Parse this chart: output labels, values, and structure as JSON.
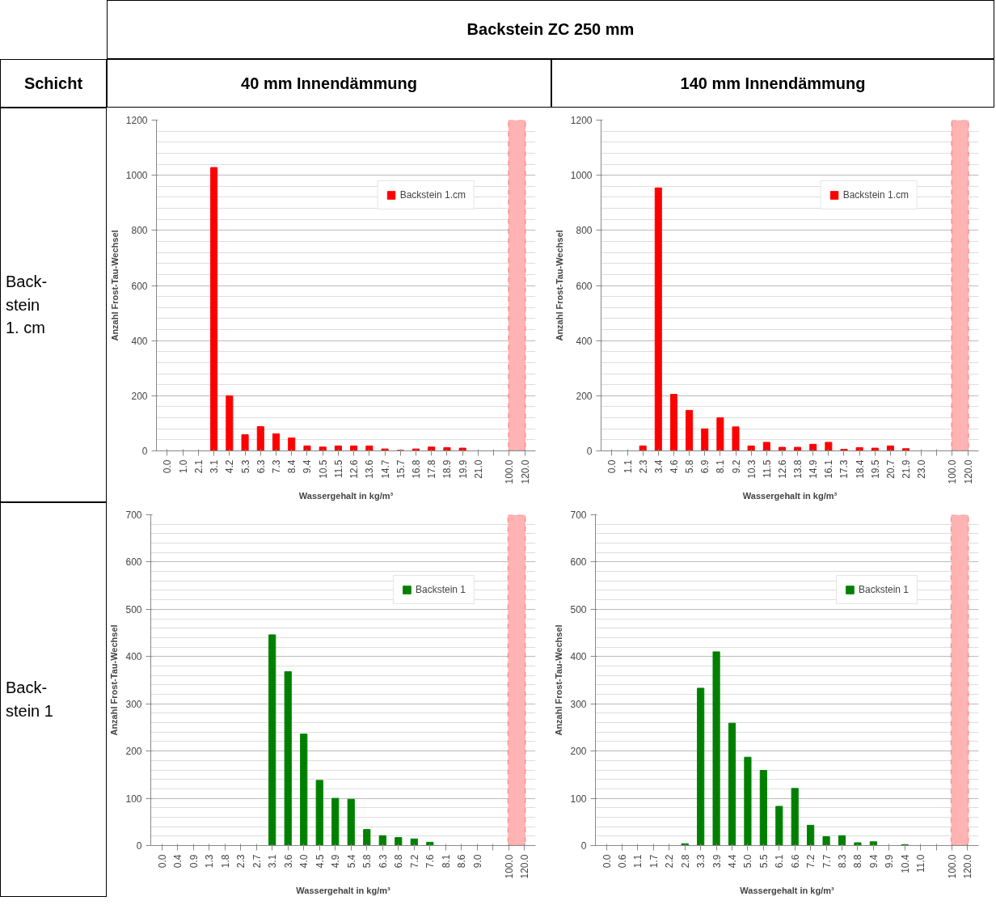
{
  "chart_data": [
    {
      "type": "bar",
      "title": "40 mm Innendämmung",
      "annotations": [
        "Backstein ZC 250 mm",
        "Schicht",
        "Back-\nstein\n1. cm"
      ],
      "xlabel": "Wassergehalt in kg/m³",
      "ylabel": "Anzahl Frost-Tau-Wechsel",
      "categories": [
        "0.0",
        "1.0",
        "2.1",
        "3.1",
        "4.2",
        "5.3",
        "6.3",
        "7.3",
        "8.4",
        "9.4",
        "10.5",
        "11.5",
        "12.6",
        "13.6",
        "14.7",
        "15.7",
        "16.8",
        "17.8",
        "18.9",
        "19.9",
        "21.0",
        null,
        "100.0",
        "120.0"
      ],
      "series": [
        {
          "name": "Backstein 1.cm",
          "color": "#ff0000",
          "values": [
            0,
            0,
            0,
            1028,
            200,
            59,
            88,
            62,
            47,
            18,
            14,
            18,
            18,
            18,
            7,
            2,
            7,
            14,
            12,
            10,
            0,
            null,
            0,
            0
          ]
        }
      ],
      "ylim": [
        0,
        1200
      ],
      "yticks": [
        0,
        200,
        400,
        600,
        800,
        1000,
        1200
      ],
      "grid": "y",
      "legend": "top right",
      "bands": [
        {
          "axis": "x",
          "from": "100.0",
          "to": "120.0",
          "color": "#ffb3b3"
        }
      ]
    },
    {
      "type": "bar",
      "title": "140 mm Innendämmung",
      "xlabel": "Wassergehalt in kg/m³",
      "ylabel": "Anzahl Frost-Tau-Wechsel",
      "categories": [
        "0.0",
        "1.1",
        "2.3",
        "3.4",
        "4.6",
        "5.8",
        "6.9",
        "8.1",
        "9.2",
        "10.3",
        "11.5",
        "12.6",
        "13.8",
        "14.9",
        "16.1",
        "17.3",
        "18.4",
        "19.5",
        "20.7",
        "21.9",
        "23.0",
        null,
        "100.0",
        "120.0"
      ],
      "series": [
        {
          "name": "Backstein 1.cm",
          "color": "#ff0000",
          "values": [
            0,
            0,
            18,
            954,
            205,
            147,
            80,
            120,
            87,
            18,
            31,
            13,
            13,
            24,
            31,
            6,
            12,
            10,
            18,
            8,
            0,
            null,
            0,
            0
          ]
        }
      ],
      "ylim": [
        0,
        1200
      ],
      "yticks": [
        0,
        200,
        400,
        600,
        800,
        1000,
        1200
      ],
      "grid": "y",
      "legend": "top right",
      "bands": [
        {
          "axis": "x",
          "from": "100.0",
          "to": "120.0",
          "color": "#ffb3b3"
        }
      ]
    },
    {
      "type": "bar",
      "annotations": [
        "Back-\nstein 1"
      ],
      "xlabel": "Wassergehalt in kg/m³",
      "ylabel": "Anzahl Frost-Tau-Wechsel",
      "categories": [
        "0.0",
        "0.4",
        "0.9",
        "1.3",
        "1.8",
        "2.3",
        "2.7",
        "3.1",
        "3.6",
        "4.0",
        "4.5",
        "4.9",
        "5.4",
        "5.8",
        "6.3",
        "6.8",
        "7.2",
        "7.6",
        "8.1",
        "8.6",
        "9.0",
        null,
        "100.0",
        "120.0"
      ],
      "series": [
        {
          "name": "Backstein 1",
          "color": "#008000",
          "values": [
            0,
            0,
            0,
            0,
            0,
            0,
            0,
            446,
            368,
            236,
            138,
            100,
            98,
            34,
            21,
            17,
            14,
            7,
            0,
            0,
            0,
            null,
            0,
            0
          ]
        }
      ],
      "ylim": [
        0,
        700
      ],
      "yticks": [
        0,
        100,
        200,
        300,
        400,
        500,
        600,
        700
      ],
      "grid": "y",
      "legend": "top right",
      "bands": [
        {
          "axis": "x",
          "from": "100.0",
          "to": "120.0",
          "color": "#ffb3b3"
        }
      ]
    },
    {
      "type": "bar",
      "xlabel": "Wassergehalt in kg/m³",
      "ylabel": "Anzahl Frost-Tau-Wechsel",
      "categories": [
        "0.0",
        "0.6",
        "1.1",
        "1.7",
        "2.2",
        "2.8",
        "3.3",
        "3.9",
        "4.4",
        "5.0",
        "5.5",
        "6.1",
        "6.6",
        "7.2",
        "7.7",
        "8.3",
        "8.8",
        "9.4",
        "9.9",
        "10.4",
        "11.0",
        null,
        "100.0",
        "120.0"
      ],
      "series": [
        {
          "name": "Backstein 1",
          "color": "#008000",
          "values": [
            0,
            0,
            0,
            0,
            0,
            4,
            333,
            410,
            259,
            187,
            159,
            83,
            121,
            43,
            19,
            21,
            6,
            8,
            0,
            2,
            0,
            null,
            0,
            0
          ]
        }
      ],
      "ylim": [
        0,
        700
      ],
      "yticks": [
        0,
        100,
        200,
        300,
        400,
        500,
        600,
        700
      ],
      "grid": "y",
      "legend": "top right",
      "bands": [
        {
          "axis": "x",
          "from": "100.0",
          "to": "120.0",
          "color": "#ffb3b3"
        }
      ]
    }
  ]
}
